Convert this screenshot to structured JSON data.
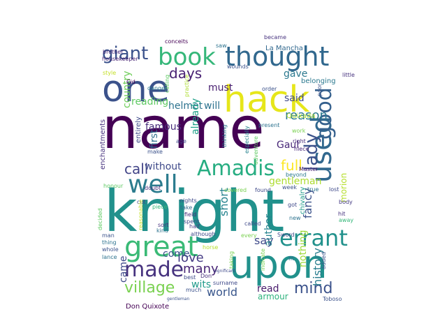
{
  "words": [
    {
      "t": "name",
      "c": "#440154"
    },
    {
      "t": "knight",
      "c": "#21918c"
    },
    {
      "t": "one",
      "c": "#3b528b"
    },
    {
      "t": "upon",
      "c": "#21918c"
    },
    {
      "t": "hack",
      "c": "#e6e61a"
    },
    {
      "t": "thought",
      "c": "#31688e"
    },
    {
      "t": "book",
      "c": "#35b779"
    },
    {
      "t": "well",
      "c": "#2c7c8e"
    },
    {
      "t": "great",
      "c": "#3aba76"
    },
    {
      "t": "made",
      "c": "#46327e"
    },
    {
      "t": "Amadis",
      "c": "#26ad81"
    },
    {
      "t": "used",
      "c": "#31688e"
    },
    {
      "t": "good",
      "c": "#35608d"
    },
    {
      "t": "errant",
      "c": "#21918c"
    },
    {
      "t": "giant",
      "c": "#3b528b"
    },
    {
      "t": "village",
      "c": "#7ad151"
    },
    {
      "t": "mind",
      "c": "#3b528b"
    },
    {
      "t": "days",
      "c": "#482173"
    },
    {
      "t": "call",
      "c": "#414487"
    },
    {
      "t": "lady",
      "c": "#3b528b"
    },
    {
      "t": "love",
      "c": "#443a83"
    },
    {
      "t": "many",
      "c": "#482475"
    },
    {
      "t": "gave",
      "c": "#2a788e"
    },
    {
      "t": "reason",
      "c": "#2a788e"
    },
    {
      "t": "history",
      "c": "#287d8e"
    },
    {
      "t": "world",
      "c": "#39568c"
    },
    {
      "t": "full",
      "c": "#fde725"
    },
    {
      "t": "helmet",
      "c": "#2c728e"
    },
    {
      "t": "will",
      "c": "#2c728e"
    },
    {
      "t": "reading",
      "c": "#5ec962"
    },
    {
      "t": "country",
      "c": "#6ece58"
    },
    {
      "t": "famous",
      "c": "#472d7b"
    },
    {
      "t": "without",
      "c": "#3e4989"
    },
    {
      "t": "Gaul",
      "c": "#482878"
    },
    {
      "t": "gentleman",
      "c": "#addc30"
    },
    {
      "t": "fancy",
      "c": "#3b528b"
    },
    {
      "t": "say",
      "c": "#3e4989"
    },
    {
      "t": "said",
      "c": "#3e4989"
    },
    {
      "t": "must",
      "c": "#481f70"
    },
    {
      "t": "short",
      "c": "#26828e"
    },
    {
      "t": "come",
      "c": "#3b528b"
    },
    {
      "t": "wits",
      "c": "#1f9a8a"
    },
    {
      "t": "read",
      "c": "#481a6c"
    },
    {
      "t": "armour",
      "c": "#2db27d"
    },
    {
      "t": "author",
      "c": "#26828e"
    },
    {
      "t": "nothing",
      "c": "#9fda3a"
    },
    {
      "t": "already",
      "c": "#1fa088"
    },
    {
      "t": "first",
      "c": "#2e6f8e"
    },
    {
      "t": "came",
      "c": "#3e4989"
    },
    {
      "t": "morion",
      "c": "#b5de2b"
    },
    {
      "t": "La Mancha",
      "c": "#31688e"
    },
    {
      "t": "belonging",
      "c": "#2a788e"
    },
    {
      "t": "Quixada",
      "c": "#addc30"
    },
    {
      "t": "Don Quixote",
      "c": "#440154"
    },
    {
      "t": "entirely",
      "c": "#3e4989"
    },
    {
      "t": "chivalry",
      "c": "#1f9a8a"
    },
    {
      "t": "enchantments",
      "c": "#46327e"
    },
    {
      "t": "housekeeper",
      "c": "#482475"
    },
    {
      "t": "conceits",
      "c": "#440154"
    },
    {
      "t": "brother",
      "c": "#482878"
    },
    {
      "t": "became",
      "c": "#46327e"
    },
    {
      "t": "saw",
      "c": "#2c728e"
    },
    {
      "t": "wounds",
      "c": "#3b528b"
    },
    {
      "t": "danger",
      "c": "#2a788e"
    },
    {
      "t": "calling",
      "c": "#5ec962"
    },
    {
      "t": "practice",
      "c": "#addc30"
    },
    {
      "t": "style",
      "c": "#c2df23"
    },
    {
      "t": "Cid",
      "c": "#440154"
    },
    {
      "t": "little",
      "c": "#46327e"
    },
    {
      "t": "order",
      "c": "#3b528b"
    },
    {
      "t": "poor",
      "c": "#3b528b"
    },
    {
      "t": "right",
      "c": "#472d7b"
    },
    {
      "t": "work",
      "c": "#7ad151"
    },
    {
      "t": "Master",
      "c": "#482475"
    },
    {
      "t": "niece",
      "c": "#482878"
    },
    {
      "t": "beyond",
      "c": "#2a788e"
    },
    {
      "t": "thinking",
      "c": "#2a788e"
    },
    {
      "t": "especially",
      "c": "#26828e"
    },
    {
      "t": "adventure",
      "c": "#5ec962"
    },
    {
      "t": "present",
      "c": "#2c728e"
    },
    {
      "t": "age",
      "c": "#3e4989"
    },
    {
      "t": "make",
      "c": "#3b528b"
    },
    {
      "t": "honour",
      "c": "#5ec962"
    },
    {
      "t": "doubt",
      "c": "#472d7b"
    },
    {
      "t": "cut",
      "c": "#3e4989"
    },
    {
      "t": "decided",
      "c": "#5ec962"
    },
    {
      "t": "nights",
      "c": "#3e4989"
    },
    {
      "t": "take",
      "c": "#31688e"
    },
    {
      "t": "field",
      "c": "#472d7b"
    },
    {
      "t": "spent",
      "c": "#3e4989"
    },
    {
      "t": "half",
      "c": "#443a83"
    },
    {
      "t": "piece",
      "c": "#35b779"
    },
    {
      "t": "sort",
      "c": "#46327e"
    },
    {
      "t": "kind",
      "c": "#2c728e"
    },
    {
      "t": "reasonable",
      "c": "#c2df23"
    },
    {
      "t": "although",
      "c": "#3e4989"
    },
    {
      "t": "covered",
      "c": "#7ad151"
    },
    {
      "t": "found",
      "c": "#3e4989"
    },
    {
      "t": "week",
      "c": "#3b528b"
    },
    {
      "t": "true",
      "c": "#2c728e"
    },
    {
      "t": "lost",
      "c": "#3e4989"
    },
    {
      "t": "body",
      "c": "#443a83"
    },
    {
      "t": "hit",
      "c": "#46327e"
    },
    {
      "t": "away",
      "c": "#35b779"
    },
    {
      "t": "got",
      "c": "#3e4989"
    },
    {
      "t": "new",
      "c": "#2c728e"
    },
    {
      "t": "called",
      "c": "#3e4989"
    },
    {
      "t": "Sword",
      "c": "#3e4989"
    },
    {
      "t": "man",
      "c": "#3b528b"
    },
    {
      "t": "thing",
      "c": "#2c728e"
    },
    {
      "t": "whole",
      "c": "#3b528b"
    },
    {
      "t": "lance",
      "c": "#2c728e"
    },
    {
      "t": "horse",
      "c": "#b5de2b"
    },
    {
      "t": "every",
      "c": "#7ad151"
    },
    {
      "t": "taking",
      "c": "#7ad151"
    },
    {
      "t": "indicate",
      "c": "#7ad151"
    },
    {
      "t": "best",
      "c": "#3e4989"
    },
    {
      "t": "Don",
      "c": "#472d7b"
    },
    {
      "t": "surname",
      "c": "#3e4989"
    },
    {
      "t": "much",
      "c": "#3b528b"
    },
    {
      "t": "added",
      "c": "#3b528b"
    },
    {
      "t": "fit",
      "c": "#2c728e"
    },
    {
      "t": "Toboso",
      "c": "#3b528b"
    },
    {
      "t": "significant",
      "c": "#3e4989"
    },
    {
      "t": "gentleman",
      "c": "#3b528b"
    }
  ]
}
